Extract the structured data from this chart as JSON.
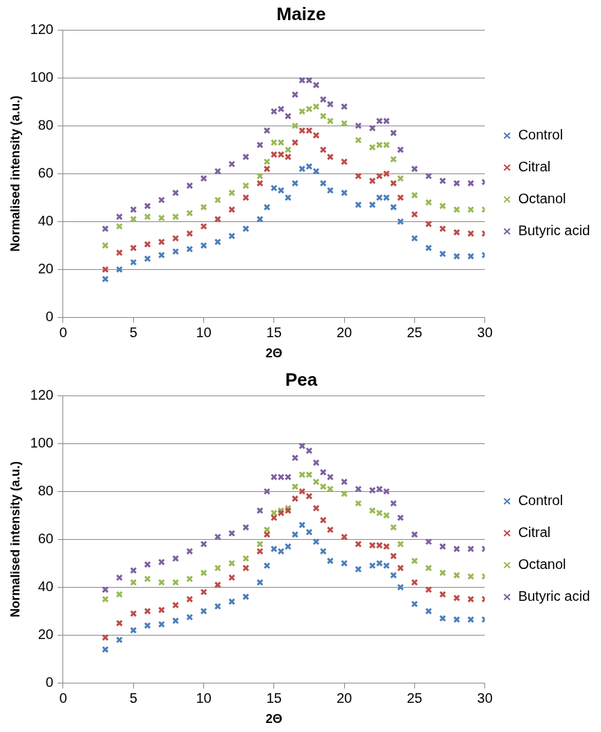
{
  "chart_data": [
    {
      "type": "scatter",
      "title": "Maize",
      "xlabel": "2Θ",
      "ylabel": "Normalised intensity (a.u.)",
      "x": [
        3,
        4,
        5,
        6,
        7,
        8,
        9,
        10,
        11,
        12,
        13,
        14,
        14.5,
        15,
        15.5,
        16,
        16.5,
        17,
        17.5,
        18,
        18.5,
        19,
        20,
        21,
        22,
        22.5,
        23,
        23.5,
        24,
        25,
        26,
        27,
        28,
        29,
        30
      ],
      "series": [
        {
          "name": "Control",
          "color": "#4a7ebb",
          "values": [
            16,
            20,
            23,
            24.5,
            26,
            27.5,
            28.5,
            30,
            31.5,
            34,
            37,
            41,
            46,
            54,
            53,
            50,
            56,
            62,
            63,
            61,
            56,
            53,
            52,
            47,
            47,
            50,
            50,
            46,
            40,
            33,
            29,
            26.5,
            25.5,
            25.5,
            26
          ]
        },
        {
          "name": "Citral",
          "color": "#be4b48",
          "values": [
            20,
            27,
            29,
            30.5,
            31.5,
            33,
            35,
            38,
            41,
            45,
            50,
            56,
            62,
            68,
            68,
            67,
            73,
            78,
            78,
            76,
            70,
            67,
            65,
            59,
            57,
            59,
            60,
            56,
            50,
            43,
            39,
            37,
            35.5,
            35,
            35
          ]
        },
        {
          "name": "Octanol",
          "color": "#98b954",
          "values": [
            30,
            38,
            41,
            42,
            41.5,
            42,
            43.5,
            46,
            49,
            52,
            55,
            59,
            65,
            73,
            73,
            70,
            80,
            86,
            87,
            88,
            84,
            82,
            81,
            74,
            71,
            72,
            72,
            66,
            58,
            51,
            48,
            46.5,
            45,
            45,
            45
          ]
        },
        {
          "name": "Butyric acid",
          "color": "#7d60a0",
          "values": [
            37,
            42,
            45,
            46.5,
            49,
            52,
            55,
            58,
            61,
            64,
            67,
            72,
            78,
            86,
            87,
            84,
            93,
            99,
            99,
            97,
            91,
            89,
            88,
            80,
            79,
            82,
            82,
            77,
            70,
            62,
            59,
            57,
            56,
            56,
            56.5
          ]
        }
      ],
      "xlim": [
        0,
        30
      ],
      "xticks": [
        0,
        5,
        10,
        15,
        20,
        25,
        30
      ],
      "ylim": [
        0,
        120
      ],
      "yticks": [
        0,
        20,
        40,
        60,
        80,
        100,
        120
      ],
      "grid": "y",
      "legend": "right",
      "marker": "cross"
    },
    {
      "type": "scatter",
      "title": "Pea",
      "xlabel": "2Θ",
      "ylabel": "Normalised intensity (a.u.)",
      "x": [
        3,
        4,
        5,
        6,
        7,
        8,
        9,
        10,
        11,
        12,
        13,
        14,
        14.5,
        15,
        15.5,
        16,
        16.5,
        17,
        17.5,
        18,
        18.5,
        19,
        20,
        21,
        22,
        22.5,
        23,
        23.5,
        24,
        25,
        26,
        27,
        28,
        29,
        30
      ],
      "series": [
        {
          "name": "Control",
          "color": "#4a7ebb",
          "values": [
            14,
            18,
            22,
            24,
            24.5,
            26,
            27.5,
            30,
            32,
            34,
            36,
            42,
            49,
            56,
            55,
            57,
            62,
            66,
            63,
            59,
            55,
            51,
            50,
            47.5,
            49,
            50,
            49,
            45,
            40,
            33,
            30,
            27,
            26.5,
            26.5,
            26.5
          ]
        },
        {
          "name": "Citral",
          "color": "#be4b48",
          "values": [
            19,
            25,
            29,
            30,
            30.5,
            32.5,
            35,
            38,
            41,
            44,
            48,
            55,
            62,
            69,
            71,
            72,
            77,
            80,
            78,
            73,
            68,
            64,
            61,
            58,
            57.5,
            57.5,
            57,
            53,
            48,
            42,
            39,
            37,
            35.5,
            35,
            35
          ]
        },
        {
          "name": "Octanol",
          "color": "#98b954",
          "values": [
            35,
            37,
            42,
            43.5,
            42,
            42,
            43.5,
            46,
            48,
            50,
            52,
            58,
            64,
            71,
            72,
            73,
            82,
            87,
            87,
            84,
            82,
            81,
            79,
            75,
            72,
            71,
            70,
            65,
            58,
            51,
            48,
            46,
            45,
            44.5,
            44.5
          ]
        },
        {
          "name": "Butyric acid",
          "color": "#7d60a0",
          "values": [
            39,
            44,
            47,
            49.5,
            50.5,
            52,
            55,
            58,
            61,
            62.5,
            65,
            72,
            80,
            86,
            86,
            86,
            94,
            99,
            97,
            92,
            88,
            86,
            84,
            81,
            80.5,
            81,
            80,
            75,
            69,
            62,
            59,
            57,
            56,
            56,
            56
          ]
        }
      ],
      "xlim": [
        0,
        30
      ],
      "xticks": [
        0,
        5,
        10,
        15,
        20,
        25,
        30
      ],
      "ylim": [
        0,
        120
      ],
      "yticks": [
        0,
        20,
        40,
        60,
        80,
        100,
        120
      ],
      "grid": "y",
      "legend": "right",
      "marker": "cross"
    }
  ]
}
